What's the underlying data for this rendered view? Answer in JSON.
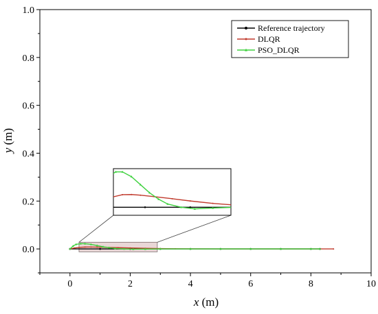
{
  "chart_data": {
    "type": "line",
    "xlabel": "x (m)",
    "xlabel_var": "x",
    "xlabel_unit": " (m)",
    "ylabel": "y (m)",
    "ylabel_var": "y",
    "ylabel_unit": " (m)",
    "xlim": [
      -1,
      10
    ],
    "ylim": [
      -0.1,
      1.0
    ],
    "xticks": [
      0,
      2,
      4,
      6,
      8,
      10
    ],
    "yticks": [
      0.0,
      0.2,
      0.4,
      0.6,
      0.8,
      1.0
    ],
    "xtick_labels": [
      "0",
      "2",
      "4",
      "6",
      "8",
      "10"
    ],
    "ytick_labels": [
      "0.0",
      "0.2",
      "0.4",
      "0.6",
      "0.8",
      "1.0"
    ],
    "grid": false,
    "legend_position": "top-right",
    "series": [
      {
        "name": "Reference trajectory",
        "color": "#000000",
        "marker": "circle",
        "x": [
          0.0,
          1.0,
          2.0,
          3.0,
          4.0,
          5.0,
          6.0,
          7.0,
          8.0,
          8.3
        ],
        "y": [
          0.0,
          0.0,
          0.0,
          0.0,
          0.0,
          0.0,
          0.0,
          0.0,
          0.0,
          0.0
        ]
      },
      {
        "name": "DLQR",
        "color": "#c0392b",
        "marker": "dot",
        "x": [
          0.0,
          0.15,
          0.3,
          0.5,
          0.7,
          0.9,
          1.2,
          1.6,
          2.0,
          2.5,
          3.0,
          3.5,
          4.0,
          5.0,
          6.0,
          7.0,
          8.0,
          8.75
        ],
        "y": [
          0.0,
          0.004,
          0.0065,
          0.0078,
          0.0079,
          0.0075,
          0.0066,
          0.0053,
          0.0039,
          0.0024,
          0.0013,
          0.0007,
          0.0003,
          0.0001,
          0.0,
          0.0,
          0.0,
          0.0
        ]
      },
      {
        "name": "PSO_DLQR",
        "color": "#3fd13f",
        "marker": "triangle",
        "x": [
          0.0,
          0.1,
          0.2,
          0.35,
          0.5,
          0.7,
          0.9,
          1.1,
          1.3,
          1.5,
          1.8,
          2.1,
          2.5,
          3.0,
          4.0,
          5.0,
          6.0,
          7.0,
          8.0,
          8.3
        ],
        "y": [
          0.0,
          0.012,
          0.019,
          0.022,
          0.022,
          0.019,
          0.014,
          0.009,
          0.005,
          0.002,
          0.0,
          -0.001,
          -0.0005,
          0.0,
          0.0,
          0.0,
          0.0,
          0.0,
          0.0,
          0.0
        ]
      }
    ],
    "zoom_region": {
      "x": [
        0.3,
        2.9
      ],
      "y": [
        -0.012,
        0.028
      ]
    },
    "inset": {
      "xlim": [
        0.3,
        2.9
      ],
      "ylim": [
        -0.005,
        0.024
      ]
    }
  }
}
